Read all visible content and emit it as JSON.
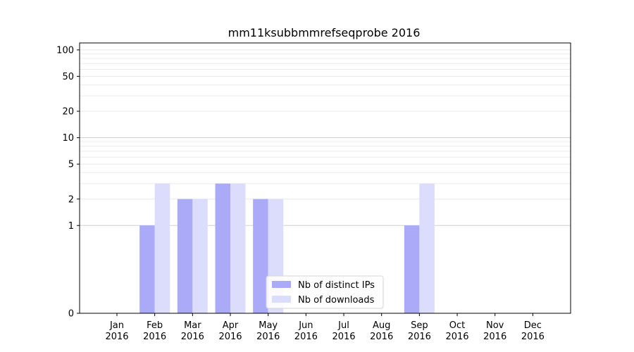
{
  "chart_data": {
    "type": "bar",
    "title": "mm11ksubbmmrefseqprobe 2016",
    "categories": [
      "Jan\n2016",
      "Feb\n2016",
      "Mar\n2016",
      "Apr\n2016",
      "May\n2016",
      "Jun\n2016",
      "Jul\n2016",
      "Aug\n2016",
      "Sep\n2016",
      "Oct\n2016",
      "Nov\n2016",
      "Dec\n2016"
    ],
    "series": [
      {
        "name": "Nb of distinct IPs",
        "color": "#aaaaf8",
        "values": [
          0,
          1,
          2,
          3,
          2,
          0,
          0,
          0,
          1,
          0,
          0,
          0
        ]
      },
      {
        "name": "Nb of downloads",
        "color": "#dcdcfc",
        "values": [
          0,
          3,
          2,
          3,
          2,
          0,
          0,
          0,
          3,
          0,
          0,
          0
        ]
      }
    ],
    "yscale": "symlog",
    "yticks": [
      0,
      1,
      2,
      5,
      10,
      20,
      50,
      100
    ],
    "ylim": [
      0,
      120
    ],
    "grid": true,
    "legend_position": "bottom-center"
  }
}
